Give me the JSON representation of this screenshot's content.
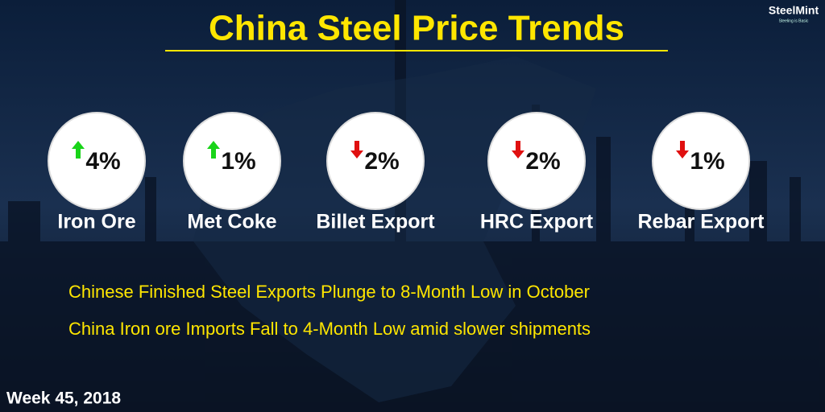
{
  "header": {
    "title": "China Steel Price Trends",
    "logo": "SteelMint",
    "tagline": "Steeling is Basic"
  },
  "items": [
    {
      "label": "Iron Ore",
      "change": "4%",
      "direction": "up"
    },
    {
      "label": "Met Coke",
      "change": "1%",
      "direction": "up"
    },
    {
      "label": "Billet Export",
      "change": "2%",
      "direction": "down"
    },
    {
      "label": "HRC Export",
      "change": "2%",
      "direction": "down"
    },
    {
      "label": "Rebar Export",
      "change": "1%",
      "direction": "down"
    }
  ],
  "headlines": [
    "Chinese Finished Steel Exports Plunge to 8-Month Low in October",
    "China Iron ore Imports Fall to 4-Month Low amid slower shipments"
  ],
  "footer": "Week 45, 2018",
  "colors": {
    "up": "#19d419",
    "down": "#e01010"
  }
}
